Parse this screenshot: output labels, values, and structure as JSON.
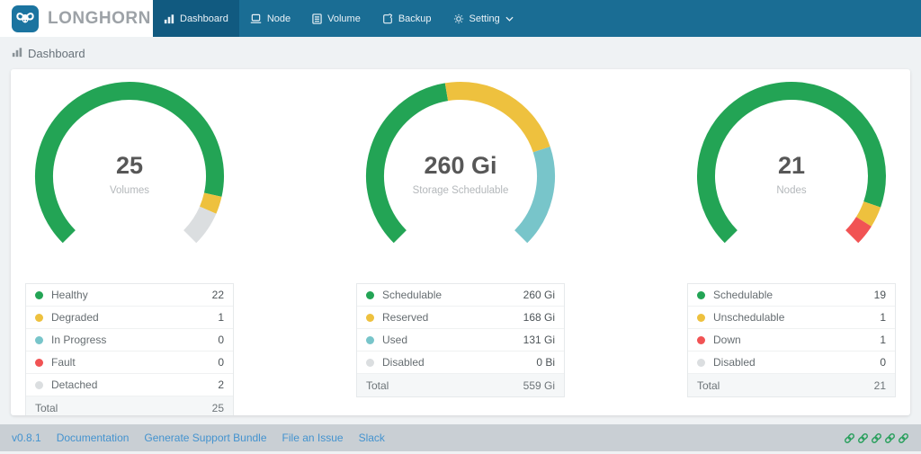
{
  "brand": {
    "name": "LONGHORN",
    "logo_icon": "bull-icon"
  },
  "nav": {
    "items": [
      {
        "label": "Dashboard",
        "icon": "bar-chart-icon",
        "active": true
      },
      {
        "label": "Node",
        "icon": "laptop-icon",
        "active": false
      },
      {
        "label": "Volume",
        "icon": "list-icon",
        "active": false
      },
      {
        "label": "Backup",
        "icon": "backup-icon",
        "active": false
      },
      {
        "label": "Setting",
        "icon": "gear-icon",
        "active": false,
        "dropdown": true
      }
    ]
  },
  "breadcrumb": {
    "icon": "bar-chart-icon",
    "label": "Dashboard"
  },
  "colors": {
    "green": "#23A455",
    "yellow": "#EEC13E",
    "teal": "#78C5CA",
    "red": "#F15354",
    "gray": "#DBDEE0",
    "navbar": "#1A6D94",
    "navbar_active": "#115A80",
    "footer_icon": "#2BA05E",
    "footer_link": "#4493CF"
  },
  "chart_data": [
    {
      "type": "donut-gauge",
      "center_value": "25",
      "center_label": "Volumes",
      "arc": {
        "start_angle": 225,
        "end_angle": -45
      },
      "segments": [
        {
          "label": "Healthy",
          "value": 22,
          "display": "22",
          "color_key": "green"
        },
        {
          "label": "Degraded",
          "value": 1,
          "display": "1",
          "color_key": "yellow"
        },
        {
          "label": "In Progress",
          "value": 0,
          "display": "0",
          "color_key": "teal"
        },
        {
          "label": "Fault",
          "value": 0,
          "display": "0",
          "color_key": "red"
        },
        {
          "label": "Detached",
          "value": 2,
          "display": "2",
          "color_key": "gray"
        }
      ],
      "total_label": "Total",
      "total_display": "25"
    },
    {
      "type": "donut-gauge",
      "center_value": "260 Gi",
      "center_label": "Storage Schedulable",
      "arc": {
        "start_angle": 225,
        "end_angle": -45
      },
      "segments": [
        {
          "label": "Schedulable",
          "value": 260,
          "display": "260 Gi",
          "color_key": "green"
        },
        {
          "label": "Reserved",
          "value": 168,
          "display": "168 Gi",
          "color_key": "yellow"
        },
        {
          "label": "Used",
          "value": 131,
          "display": "131 Gi",
          "color_key": "teal"
        },
        {
          "label": "Disabled",
          "value": 0,
          "display": "0 Bi",
          "color_key": "gray"
        }
      ],
      "total_label": "Total",
      "total_display": "559 Gi"
    },
    {
      "type": "donut-gauge",
      "center_value": "21",
      "center_label": "Nodes",
      "arc": {
        "start_angle": 225,
        "end_angle": -45
      },
      "segments": [
        {
          "label": "Schedulable",
          "value": 19,
          "display": "19",
          "color_key": "green"
        },
        {
          "label": "Unschedulable",
          "value": 1,
          "display": "1",
          "color_key": "yellow"
        },
        {
          "label": "Down",
          "value": 1,
          "display": "1",
          "color_key": "red"
        },
        {
          "label": "Disabled",
          "value": 0,
          "display": "0",
          "color_key": "gray"
        }
      ],
      "total_label": "Total",
      "total_display": "21"
    }
  ],
  "footer": {
    "links": [
      "v0.8.1",
      "Documentation",
      "Generate Support Bundle",
      "File an Issue",
      "Slack"
    ],
    "status_icon": "link-icon",
    "status_icon_count": 5
  }
}
